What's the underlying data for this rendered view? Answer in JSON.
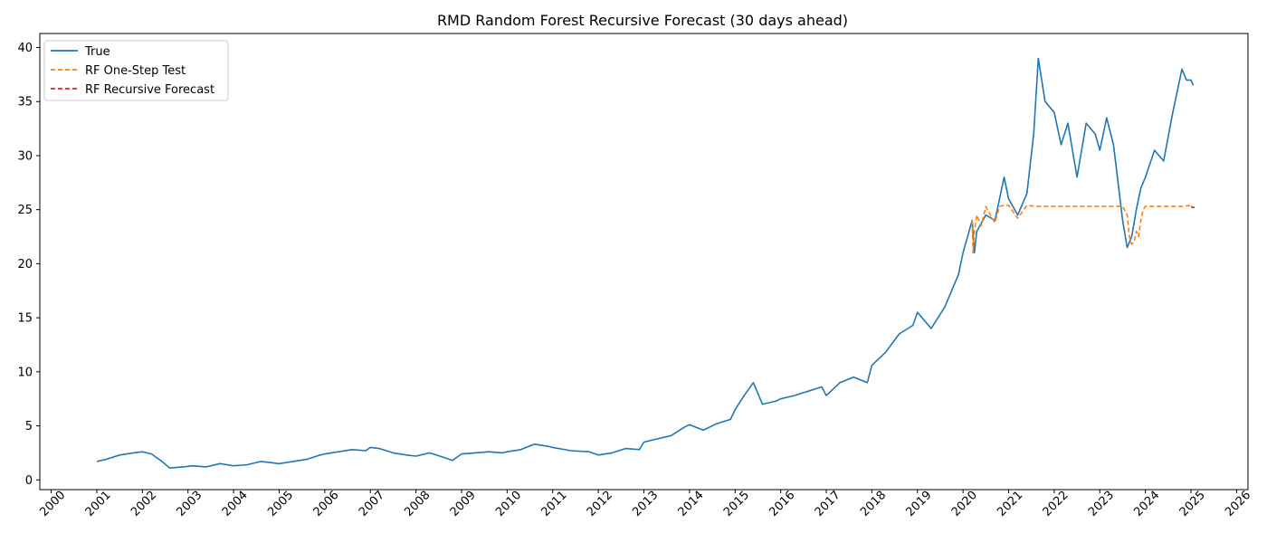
{
  "chart_data": {
    "type": "line",
    "title": "RMD Random Forest Recursive Forecast (30 days ahead)",
    "xlabel": "",
    "ylabel": "",
    "xlim": [
      1999.75,
      2026.25
    ],
    "ylim": [
      -0.9,
      41.3
    ],
    "x_ticks": [
      "2000",
      "2001",
      "2002",
      "2003",
      "2004",
      "2005",
      "2006",
      "2007",
      "2008",
      "2009",
      "2010",
      "2011",
      "2012",
      "2013",
      "2014",
      "2015",
      "2016",
      "2017",
      "2018",
      "2019",
      "2020",
      "2021",
      "2022",
      "2023",
      "2024",
      "2025",
      "2026"
    ],
    "y_ticks": [
      "0",
      "5",
      "10",
      "15",
      "20",
      "25",
      "30",
      "35",
      "40"
    ],
    "grid": false,
    "legend": {
      "location": "upper-left"
    },
    "colors": {
      "true": "#1f77b4",
      "one_step": "#ff7f0e",
      "recursive": "#d62728"
    },
    "series": [
      {
        "name": "True",
        "style": "solid",
        "x": [
          2001.0,
          2001.2,
          2001.5,
          2001.8,
          2002.0,
          2002.2,
          2002.4,
          2002.6,
          2002.9,
          2003.1,
          2003.4,
          2003.7,
          2004.0,
          2004.3,
          2004.6,
          2004.8,
          2005.0,
          2005.3,
          2005.6,
          2005.9,
          2006.0,
          2006.3,
          2006.6,
          2006.9,
          2007.0,
          2007.2,
          2007.5,
          2007.8,
          2008.0,
          2008.3,
          2008.6,
          2008.8,
          2009.0,
          2009.3,
          2009.6,
          2009.9,
          2010.0,
          2010.3,
          2010.6,
          2010.9,
          2011.0,
          2011.4,
          2011.8,
          2012.0,
          2012.3,
          2012.6,
          2012.9,
          2013.0,
          2013.3,
          2013.6,
          2013.9,
          2014.0,
          2014.3,
          2014.6,
          2014.9,
          2015.0,
          2015.2,
          2015.4,
          2015.6,
          2015.9,
          2016.0,
          2016.3,
          2016.6,
          2016.9,
          2017.0,
          2017.3,
          2017.6,
          2017.9,
          2018.0,
          2018.3,
          2018.6,
          2018.9,
          2019.0,
          2019.3,
          2019.6,
          2019.9,
          2020.0,
          2020.2,
          2020.25,
          2020.3,
          2020.5,
          2020.7,
          2020.9,
          2021.0,
          2021.2,
          2021.4,
          2021.55,
          2021.65,
          2021.8,
          2022.0,
          2022.15,
          2022.3,
          2022.5,
          2022.7,
          2022.9,
          2023.0,
          2023.15,
          2023.3,
          2023.5,
          2023.6,
          2023.7,
          2023.8,
          2023.9,
          2024.0,
          2024.2,
          2024.4,
          2024.6,
          2024.8,
          2024.9,
          2025.0,
          2025.05
        ],
        "y": [
          1.7,
          1.9,
          2.3,
          2.5,
          2.6,
          2.4,
          1.8,
          1.1,
          1.2,
          1.3,
          1.2,
          1.5,
          1.3,
          1.4,
          1.7,
          1.6,
          1.5,
          1.7,
          1.9,
          2.3,
          2.4,
          2.6,
          2.8,
          2.7,
          3.0,
          2.9,
          2.5,
          2.3,
          2.2,
          2.5,
          2.1,
          1.8,
          2.4,
          2.5,
          2.6,
          2.5,
          2.6,
          2.8,
          3.3,
          3.1,
          3.0,
          2.7,
          2.6,
          2.3,
          2.5,
          2.9,
          2.8,
          3.5,
          3.8,
          4.1,
          4.9,
          5.1,
          4.6,
          5.2,
          5.6,
          6.5,
          7.8,
          9.0,
          7.0,
          7.3,
          7.5,
          7.8,
          8.2,
          8.6,
          7.8,
          9.0,
          9.5,
          9.0,
          10.6,
          11.8,
          13.5,
          14.3,
          15.5,
          14.0,
          16.0,
          19.0,
          21.0,
          24.0,
          21.0,
          23.0,
          24.5,
          24.0,
          28.0,
          26.0,
          24.5,
          26.5,
          32.0,
          39.0,
          35.0,
          34.0,
          31.0,
          33.0,
          28.0,
          33.0,
          32.0,
          30.5,
          33.5,
          31.0,
          24.0,
          21.5,
          22.5,
          25.0,
          27.0,
          28.0,
          30.5,
          29.5,
          34.0,
          38.0,
          37.0,
          37.0,
          36.5
        ]
      },
      {
        "name": "RF One-Step Test",
        "style": "dashed",
        "x": [
          2020.2,
          2020.22,
          2020.25,
          2020.3,
          2020.4,
          2020.5,
          2020.6,
          2020.7,
          2020.8,
          2020.9,
          2021.0,
          2021.2,
          2021.4,
          2021.6,
          2021.8,
          2022.0,
          2022.3,
          2022.6,
          2022.9,
          2023.2,
          2023.5,
          2023.6,
          2023.65,
          2023.7,
          2023.75,
          2023.8,
          2023.85,
          2023.9,
          2023.95,
          2024.0,
          2024.2,
          2024.5,
          2024.8,
          2025.0
        ],
        "y": [
          24.0,
          21.0,
          23.0,
          24.5,
          23.5,
          25.3,
          24.5,
          23.8,
          25.3,
          25.4,
          25.4,
          24.2,
          25.4,
          25.3,
          25.3,
          25.3,
          25.3,
          25.3,
          25.3,
          25.3,
          25.3,
          24.5,
          22.5,
          21.8,
          22.0,
          23.0,
          22.5,
          24.0,
          25.0,
          25.3,
          25.3,
          25.3,
          25.3,
          25.4
        ]
      },
      {
        "name": "RF Recursive Forecast",
        "style": "dashed",
        "x": [
          2025.0,
          2025.04,
          2025.08
        ],
        "y": [
          25.3,
          25.2,
          25.2
        ]
      }
    ]
  }
}
